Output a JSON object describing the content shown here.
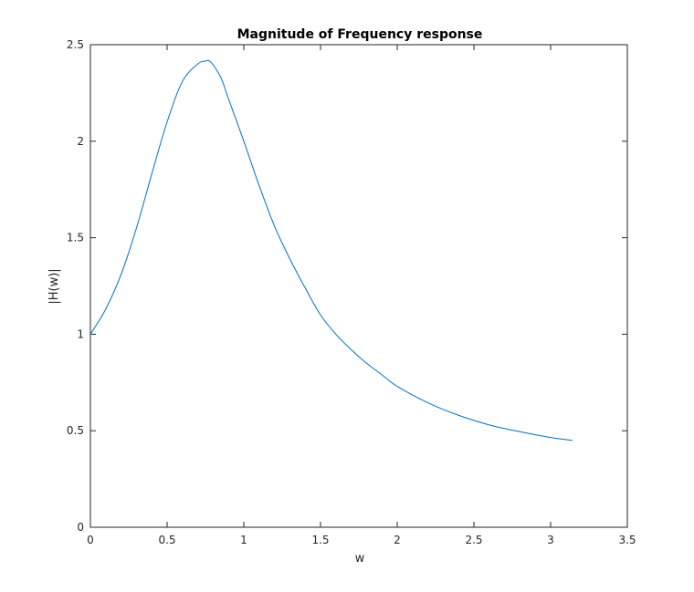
{
  "chart_data": {
    "type": "line",
    "title": "Magnitude of Frequency response",
    "xlabel": "w",
    "ylabel": "|H(w)|",
    "xlim": [
      0,
      3.5
    ],
    "ylim": [
      0,
      2.5
    ],
    "xticks": [
      0,
      0.5,
      1,
      1.5,
      2,
      2.5,
      3,
      3.5
    ],
    "yticks": [
      0,
      0.5,
      1,
      1.5,
      2,
      2.5
    ],
    "xtick_labels": [
      "0",
      "0.5",
      "1",
      "1.5",
      "2",
      "2.5",
      "3",
      "3.5"
    ],
    "ytick_labels": [
      "0",
      "0.5",
      "1",
      "1.5",
      "2",
      "2.5"
    ],
    "grid": false,
    "series": [
      {
        "color": "#0072BD",
        "x": [
          0,
          0.1,
          0.2,
          0.3,
          0.4,
          0.5,
          0.6,
          0.7,
          0.75,
          0.785,
          0.85,
          0.9,
          1.0,
          1.1,
          1.2,
          1.3,
          1.4,
          1.5,
          1.6,
          1.7,
          1.8,
          1.9,
          2.0,
          2.2,
          2.4,
          2.6,
          2.8,
          3.0,
          3.14
        ],
        "y": [
          1.0,
          1.13,
          1.31,
          1.55,
          1.83,
          2.1,
          2.31,
          2.4,
          2.415,
          2.41,
          2.33,
          2.22,
          2.0,
          1.77,
          1.56,
          1.39,
          1.24,
          1.1,
          1.0,
          0.92,
          0.85,
          0.79,
          0.73,
          0.645,
          0.58,
          0.53,
          0.495,
          0.465,
          0.45
        ]
      }
    ]
  }
}
